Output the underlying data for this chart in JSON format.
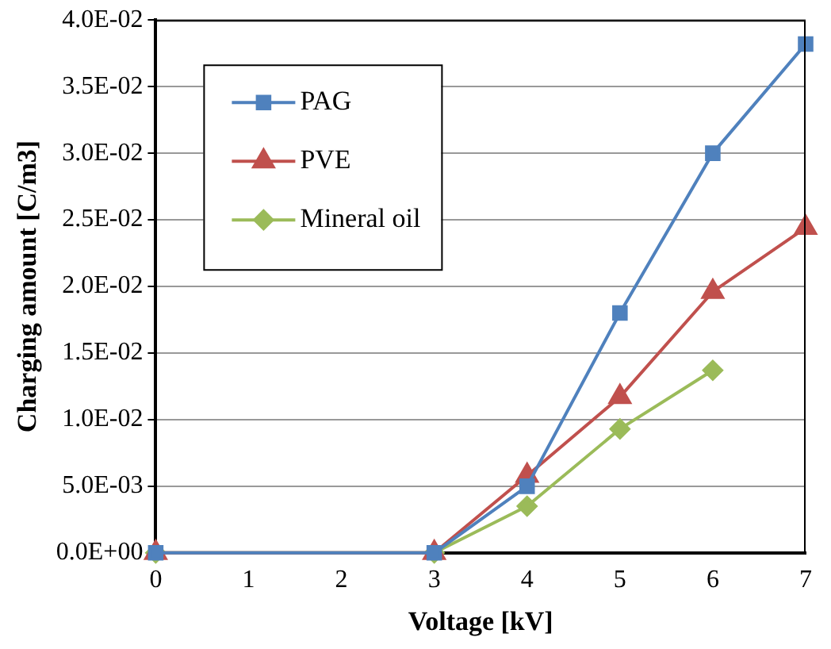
{
  "chart_data": {
    "type": "line",
    "xlabel": "Voltage [kV]",
    "ylabel": "Charging amount [C/m3]",
    "x": [
      0,
      3,
      4,
      5,
      6,
      7
    ],
    "series": [
      {
        "name": "PAG",
        "color": "#4f81bd",
        "marker": "square",
        "values": [
          0,
          0,
          0.005,
          0.018,
          0.03,
          0.0382
        ]
      },
      {
        "name": "PVE",
        "color": "#c0504d",
        "marker": "triangle",
        "values": [
          0,
          0,
          0.0058,
          0.0117,
          0.0196,
          0.0244
        ]
      },
      {
        "name": "Mineral oil",
        "color": "#9bbb59",
        "marker": "diamond",
        "x": [
          0,
          3,
          4,
          5,
          6
        ],
        "values": [
          0,
          0,
          0.0035,
          0.0093,
          0.0137
        ]
      }
    ],
    "xlim": [
      0,
      7
    ],
    "xticks": [
      0,
      1,
      2,
      3,
      4,
      5,
      6,
      7
    ],
    "ylim": [
      0,
      0.04
    ],
    "yticks": [
      {
        "value": 0,
        "label": "0.0E+00"
      },
      {
        "value": 0.005,
        "label": "5.0E-03"
      },
      {
        "value": 0.01,
        "label": "1.0E-02"
      },
      {
        "value": 0.015,
        "label": "1.5E-02"
      },
      {
        "value": 0.02,
        "label": "2.0E-02"
      },
      {
        "value": 0.025,
        "label": "2.5E-02"
      },
      {
        "value": 0.03,
        "label": "3.0E-02"
      },
      {
        "value": 0.035,
        "label": "3.5E-02"
      },
      {
        "value": 0.04,
        "label": "4.0E-02"
      }
    ],
    "grid": "y",
    "legend": "top left"
  }
}
